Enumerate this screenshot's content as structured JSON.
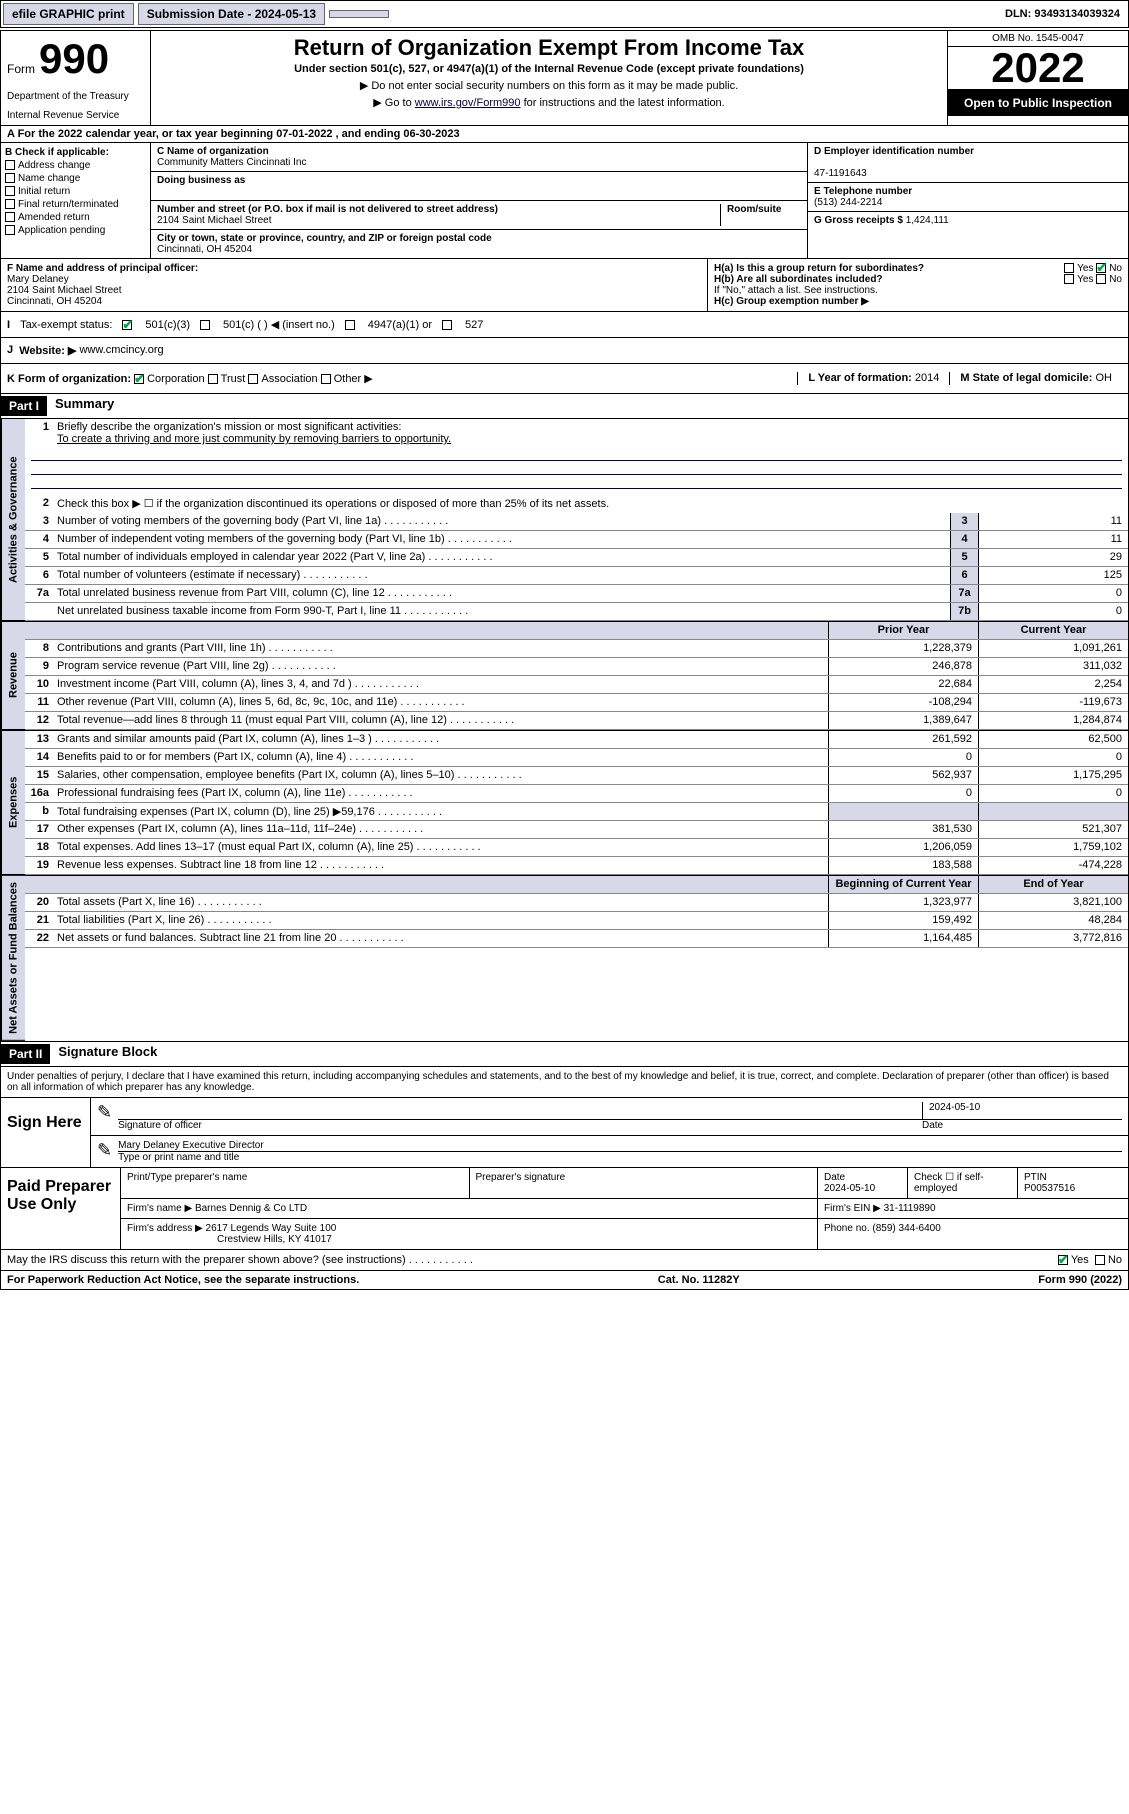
{
  "top_bar": {
    "efile": "efile GRAPHIC print",
    "submission_label": "Submission Date - 2024-05-13",
    "dln": "DLN: 93493134039324"
  },
  "header": {
    "form_word": "Form",
    "form_num": "990",
    "title": "Return of Organization Exempt From Income Tax",
    "subtitle": "Under section 501(c), 527, or 4947(a)(1) of the Internal Revenue Code (except private foundations)",
    "note1": "▶ Do not enter social security numbers on this form as it may be made public.",
    "note2_pre": "▶ Go to ",
    "note2_link": "www.irs.gov/Form990",
    "note2_post": " for instructions and the latest information.",
    "dept": "Department of the Treasury",
    "irs": "Internal Revenue Service",
    "omb": "OMB No. 1545-0047",
    "year": "2022",
    "open": "Open to Public Inspection"
  },
  "row_a": "A For the 2022 calendar year, or tax year beginning 07-01-2022   , and ending 06-30-2023",
  "col_b": {
    "hd": "B Check if applicable:",
    "opts": [
      "Address change",
      "Name change",
      "Initial return",
      "Final return/terminated",
      "Amended return",
      "Application pending"
    ]
  },
  "col_c": {
    "name_lbl": "C Name of organization",
    "name": "Community Matters Cincinnati Inc",
    "dba_lbl": "Doing business as",
    "dba": "",
    "addr_lbl": "Number and street (or P.O. box if mail is not delivered to street address)",
    "room_lbl": "Room/suite",
    "addr": "2104 Saint Michael Street",
    "city_lbl": "City or town, state or province, country, and ZIP or foreign postal code",
    "city": "Cincinnati, OH  45204"
  },
  "col_d": {
    "ein_lbl": "D Employer identification number",
    "ein": "47-1191643",
    "tel_lbl": "E Telephone number",
    "tel": "(513) 244-2214",
    "gross_lbl": "G Gross receipts $",
    "gross": "1,424,111"
  },
  "row_f": {
    "lbl": "F Name and address of principal officer:",
    "name": "Mary Delaney",
    "addr1": "2104 Saint Michael Street",
    "addr2": "Cincinnati, OH  45204"
  },
  "row_h": {
    "ha": "H(a)  Is this a group return for subordinates?",
    "ha_ans": "No",
    "hb": "H(b)  Are all subordinates included?",
    "hb_note": "If \"No,\" attach a list. See instructions.",
    "hc": "H(c)  Group exemption number ▶"
  },
  "row_i": {
    "lbl": "Tax-exempt status:",
    "opts": [
      "501(c)(3)",
      "501(c) (   ) ◀ (insert no.)",
      "4947(a)(1) or",
      "527"
    ]
  },
  "row_j": {
    "lbl": "Website: ▶",
    "val": "www.cmcincy.org"
  },
  "row_k": {
    "k": "K Form of organization:",
    "opts": [
      "Corporation",
      "Trust",
      "Association",
      "Other ▶"
    ],
    "l_lbl": "L Year of formation:",
    "l_val": "2014",
    "m_lbl": "M State of legal domicile:",
    "m_val": "OH"
  },
  "parts": {
    "p1_hdr": "Part I",
    "p1_title": "Summary",
    "p2_hdr": "Part II",
    "p2_title": "Signature Block"
  },
  "summary": {
    "q1": "Briefly describe the organization's mission or most significant activities:",
    "mission": "To create a thriving and more just community by removing barriers to opportunity.",
    "q2": "Check this box ▶ ☐  if the organization discontinued its operations or disposed of more than 25% of its net assets.",
    "lines_gov": [
      {
        "n": "3",
        "d": "Number of voting members of the governing body (Part VI, line 1a)",
        "box": "3",
        "v": "11"
      },
      {
        "n": "4",
        "d": "Number of independent voting members of the governing body (Part VI, line 1b)",
        "box": "4",
        "v": "11"
      },
      {
        "n": "5",
        "d": "Total number of individuals employed in calendar year 2022 (Part V, line 2a)",
        "box": "5",
        "v": "29"
      },
      {
        "n": "6",
        "d": "Total number of volunteers (estimate if necessary)",
        "box": "6",
        "v": "125"
      },
      {
        "n": "7a",
        "d": "Total unrelated business revenue from Part VIII, column (C), line 12",
        "box": "7a",
        "v": "0"
      },
      {
        "n": "",
        "d": "Net unrelated business taxable income from Form 990-T, Part I, line 11",
        "box": "7b",
        "v": "0"
      }
    ],
    "col_hdrs": {
      "prior": "Prior Year",
      "current": "Current Year",
      "begin": "Beginning of Current Year",
      "end": "End of Year"
    },
    "lines_rev": [
      {
        "n": "8",
        "d": "Contributions and grants (Part VIII, line 1h)",
        "p": "1,228,379",
        "c": "1,091,261"
      },
      {
        "n": "9",
        "d": "Program service revenue (Part VIII, line 2g)",
        "p": "246,878",
        "c": "311,032"
      },
      {
        "n": "10",
        "d": "Investment income (Part VIII, column (A), lines 3, 4, and 7d )",
        "p": "22,684",
        "c": "2,254"
      },
      {
        "n": "11",
        "d": "Other revenue (Part VIII, column (A), lines 5, 6d, 8c, 9c, 10c, and 11e)",
        "p": "-108,294",
        "c": "-119,673"
      },
      {
        "n": "12",
        "d": "Total revenue—add lines 8 through 11 (must equal Part VIII, column (A), line 12)",
        "p": "1,389,647",
        "c": "1,284,874"
      }
    ],
    "lines_exp": [
      {
        "n": "13",
        "d": "Grants and similar amounts paid (Part IX, column (A), lines 1–3 )",
        "p": "261,592",
        "c": "62,500"
      },
      {
        "n": "14",
        "d": "Benefits paid to or for members (Part IX, column (A), line 4)",
        "p": "0",
        "c": "0"
      },
      {
        "n": "15",
        "d": "Salaries, other compensation, employee benefits (Part IX, column (A), lines 5–10)",
        "p": "562,937",
        "c": "1,175,295"
      },
      {
        "n": "16a",
        "d": "Professional fundraising fees (Part IX, column (A), line 11e)",
        "p": "0",
        "c": "0"
      },
      {
        "n": "b",
        "d": "Total fundraising expenses (Part IX, column (D), line 25) ▶59,176",
        "p": "",
        "c": "",
        "shade": true
      },
      {
        "n": "17",
        "d": "Other expenses (Part IX, column (A), lines 11a–11d, 11f–24e)",
        "p": "381,530",
        "c": "521,307"
      },
      {
        "n": "18",
        "d": "Total expenses. Add lines 13–17 (must equal Part IX, column (A), line 25)",
        "p": "1,206,059",
        "c": "1,759,102"
      },
      {
        "n": "19",
        "d": "Revenue less expenses. Subtract line 18 from line 12",
        "p": "183,588",
        "c": "-474,228"
      }
    ],
    "lines_net": [
      {
        "n": "20",
        "d": "Total assets (Part X, line 16)",
        "p": "1,323,977",
        "c": "3,821,100"
      },
      {
        "n": "21",
        "d": "Total liabilities (Part X, line 26)",
        "p": "159,492",
        "c": "48,284"
      },
      {
        "n": "22",
        "d": "Net assets or fund balances. Subtract line 21 from line 20",
        "p": "1,164,485",
        "c": "3,772,816"
      }
    ],
    "vtabs": {
      "gov": "Activities & Governance",
      "rev": "Revenue",
      "exp": "Expenses",
      "net": "Net Assets or Fund Balances"
    }
  },
  "sig": {
    "intro": "Under penalties of perjury, I declare that I have examined this return, including accompanying schedules and statements, and to the best of my knowledge and belief, it is true, correct, and complete. Declaration of preparer (other than officer) is based on all information of which preparer has any knowledge.",
    "sign_here": "Sign Here",
    "sig_of": "Signature of officer",
    "date_lbl": "Date",
    "date": "2024-05-10",
    "name": "Mary Delaney  Executive Director",
    "name_lbl": "Type or print name and title"
  },
  "prep": {
    "hdr": "Paid Preparer Use Only",
    "cols": {
      "name": "Print/Type preparer's name",
      "sig": "Preparer's signature",
      "date": "Date",
      "check": "Check ☐ if self-employed",
      "ptin": "PTIN"
    },
    "date": "2024-05-10",
    "ptin": "P00537516",
    "firm_lbl": "Firm's name    ▶",
    "firm": "Barnes Dennig & Co LTD",
    "ein_lbl": "Firm's EIN ▶",
    "ein": "31-1119890",
    "addr_lbl": "Firm's address ▶",
    "addr1": "2617 Legends Way Suite 100",
    "addr2": "Crestview Hills, KY  41017",
    "phone_lbl": "Phone no.",
    "phone": "(859) 344-6400"
  },
  "foot": {
    "discuss": "May the IRS discuss this return with the preparer shown above? (see instructions)",
    "yes": "Yes",
    "no": "No",
    "paperwork": "For Paperwork Reduction Act Notice, see the separate instructions.",
    "cat": "Cat. No. 11282Y",
    "formno": "Form 990 (2022)"
  },
  "colors": {
    "shade": "#d8d8e8",
    "link": "#000044",
    "check": "#00aa44"
  }
}
